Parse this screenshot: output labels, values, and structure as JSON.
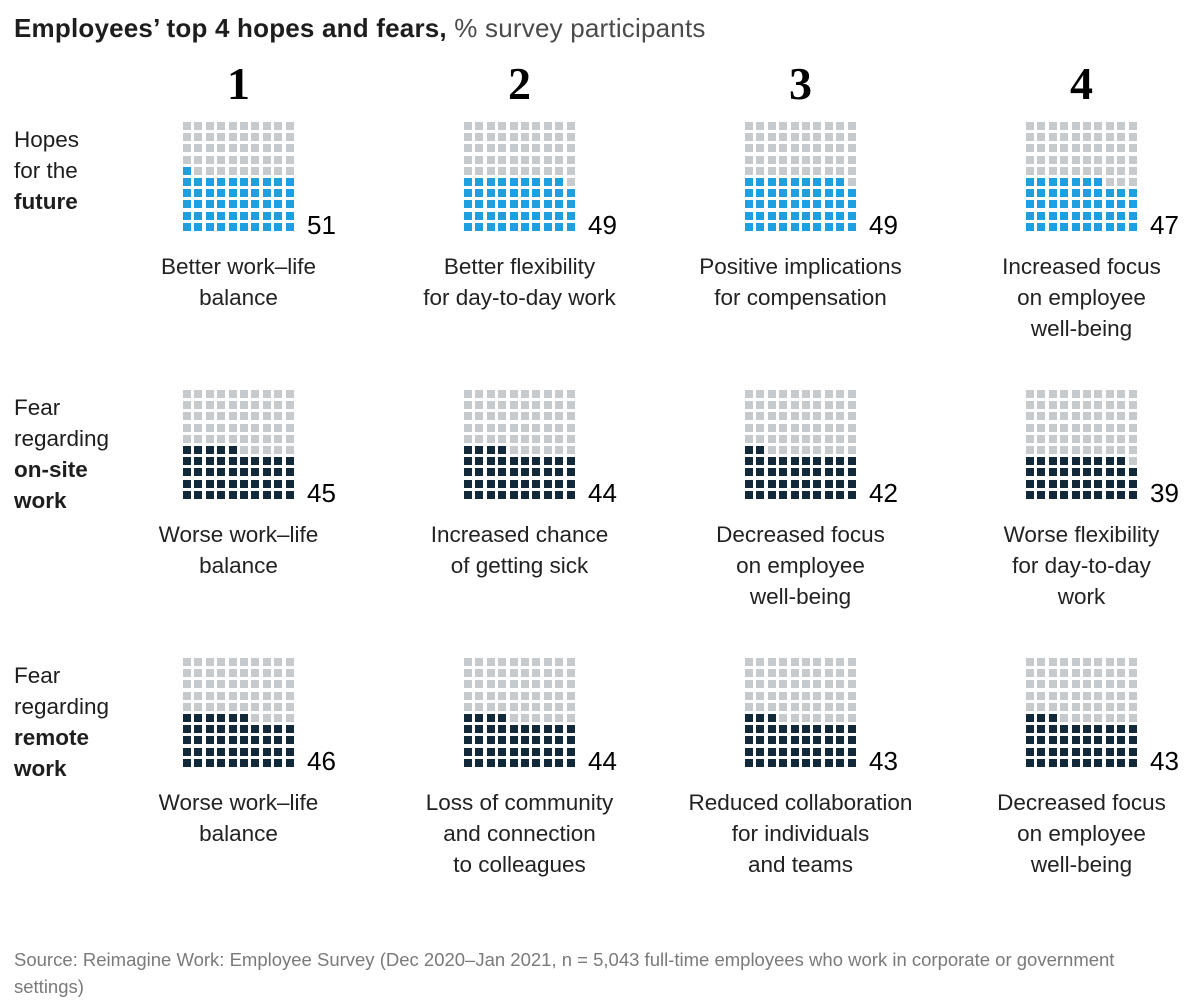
{
  "title": {
    "bold": "Employees’ top 4 hopes and fears,",
    "regular": " % survey participants"
  },
  "colors": {
    "hope": "#1E9FDF",
    "fear": "#12293A",
    "empty": "#C7CACC"
  },
  "columns": [
    "1",
    "2",
    "3",
    "4"
  ],
  "chart_data": {
    "type": "heatmap",
    "subtype": "waffle-grid-10x10",
    "title": "Employees’ top 4 hopes and fears",
    "unit": "% survey participants",
    "legend_position": "none",
    "rows": [
      {
        "label_lines": [
          {
            "text": "Hopes",
            "bold": false
          },
          {
            "text": "for the",
            "bold": false
          },
          {
            "text": "future",
            "bold": true
          }
        ],
        "color_key": "hope",
        "items": [
          {
            "value": 51,
            "label_lines": [
              "Better work–life",
              "balance"
            ]
          },
          {
            "value": 49,
            "label_lines": [
              "Better flexibility",
              "for day-to-day work"
            ]
          },
          {
            "value": 49,
            "label_lines": [
              "Positive implications",
              "for compensation"
            ]
          },
          {
            "value": 47,
            "label_lines": [
              "Increased focus",
              "on employee",
              "well-being"
            ]
          }
        ]
      },
      {
        "label_lines": [
          {
            "text": "Fear",
            "bold": false
          },
          {
            "text": "regarding",
            "bold": false
          },
          {
            "text": "on-site",
            "bold": true
          },
          {
            "text": "work",
            "bold": true
          }
        ],
        "color_key": "fear",
        "items": [
          {
            "value": 45,
            "label_lines": [
              "Worse work–life",
              "balance"
            ]
          },
          {
            "value": 44,
            "label_lines": [
              "Increased chance",
              "of getting sick"
            ]
          },
          {
            "value": 42,
            "label_lines": [
              "Decreased focus",
              "on employee",
              "well-being"
            ]
          },
          {
            "value": 39,
            "label_lines": [
              "Worse flexibility",
              "for day-to-day",
              "work"
            ]
          }
        ]
      },
      {
        "label_lines": [
          {
            "text": "Fear",
            "bold": false
          },
          {
            "text": "regarding",
            "bold": false
          },
          {
            "text": "remote",
            "bold": true
          },
          {
            "text": "work",
            "bold": true
          }
        ],
        "color_key": "fear",
        "items": [
          {
            "value": 46,
            "label_lines": [
              "Worse work–life",
              "balance"
            ]
          },
          {
            "value": 44,
            "label_lines": [
              "Loss of community",
              "and connection",
              "to colleagues"
            ]
          },
          {
            "value": 43,
            "label_lines": [
              "Reduced collaboration",
              "for individuals",
              "and teams"
            ]
          },
          {
            "value": 43,
            "label_lines": [
              "Decreased focus",
              "on employee",
              "well-being"
            ]
          }
        ]
      }
    ]
  },
  "source": "Source: Reimagine Work: Employee Survey (Dec 2020–Jan 2021, n = 5,043 full-time employees who work in corporate or government settings)"
}
